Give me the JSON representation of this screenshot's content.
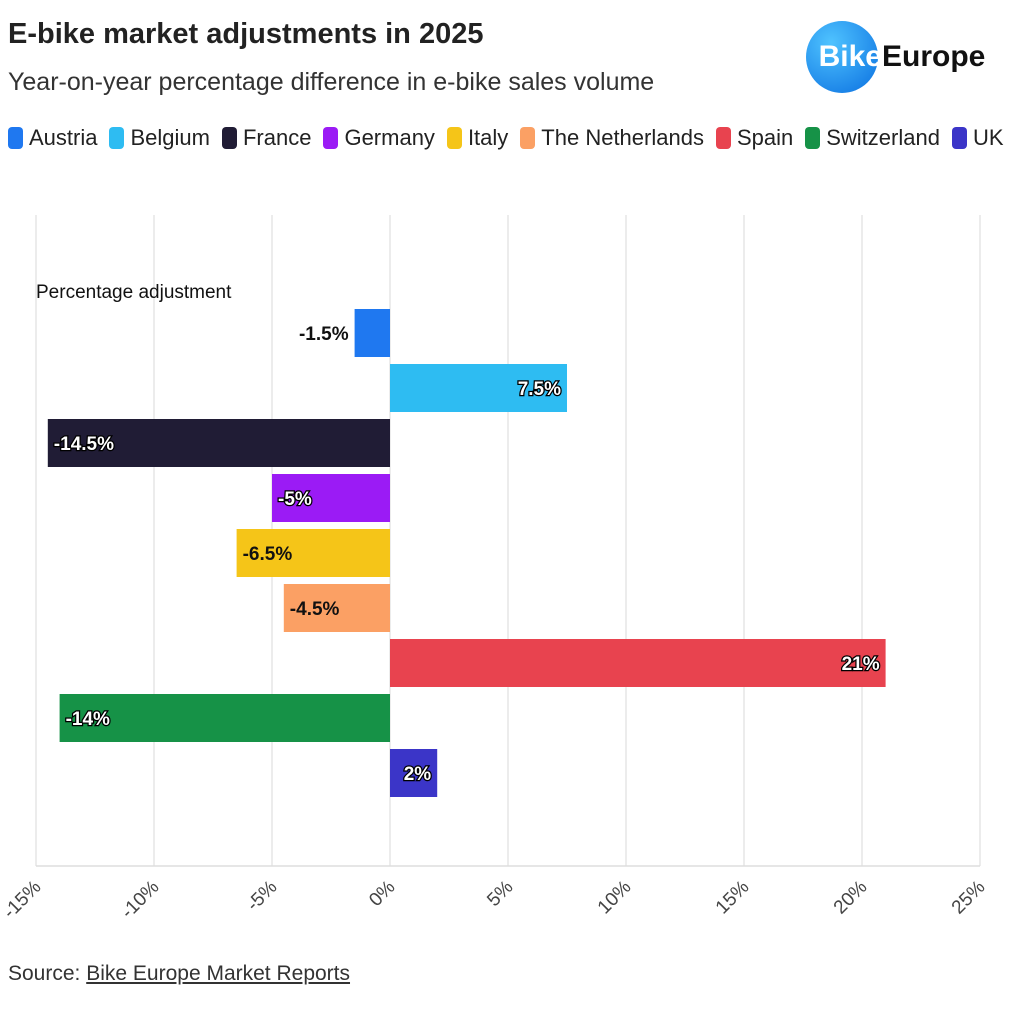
{
  "chart_data": {
    "type": "bar",
    "orientation": "horizontal",
    "title": "E-bike market adjustments in 2025",
    "subtitle": "Year-on-year percentage difference in e-bike sales volume",
    "logo": {
      "left": "Bike",
      "right": "Europe"
    },
    "axis_label": "Percentage adjustment",
    "categories": [
      "Austria",
      "Belgium",
      "France",
      "Germany",
      "Italy",
      "The Netherlands",
      "Spain",
      "Switzerland",
      "UK"
    ],
    "values": [
      -1.5,
      7.5,
      -14.5,
      -5,
      -6.5,
      -4.5,
      21,
      -14,
      2
    ],
    "value_labels": [
      "-1.5%",
      "7.5%",
      "-14.5%",
      "-5%",
      "-6.5%",
      "-4.5%",
      "21%",
      "-14%",
      "2%"
    ],
    "colors": [
      "#1f78f0",
      "#2ebcf2",
      "#201c35",
      "#9b1bf5",
      "#f5c518",
      "#fba064",
      "#e8434f",
      "#169247",
      "#3b35c8"
    ],
    "xlim": [
      -15,
      25
    ],
    "xticks": [
      {
        "value": -15,
        "label": "-15%"
      },
      {
        "value": -10,
        "label": "-10%"
      },
      {
        "value": -5,
        "label": "-5%"
      },
      {
        "value": 0,
        "label": "0%"
      },
      {
        "value": 5,
        "label": "5%"
      },
      {
        "value": 10,
        "label": "10%"
      },
      {
        "value": 15,
        "label": "15%"
      },
      {
        "value": 20,
        "label": "20%"
      },
      {
        "value": 25,
        "label": "25%"
      }
    ],
    "grid": true,
    "source_label": "Source:",
    "source_link": "Bike Europe Market Reports"
  }
}
